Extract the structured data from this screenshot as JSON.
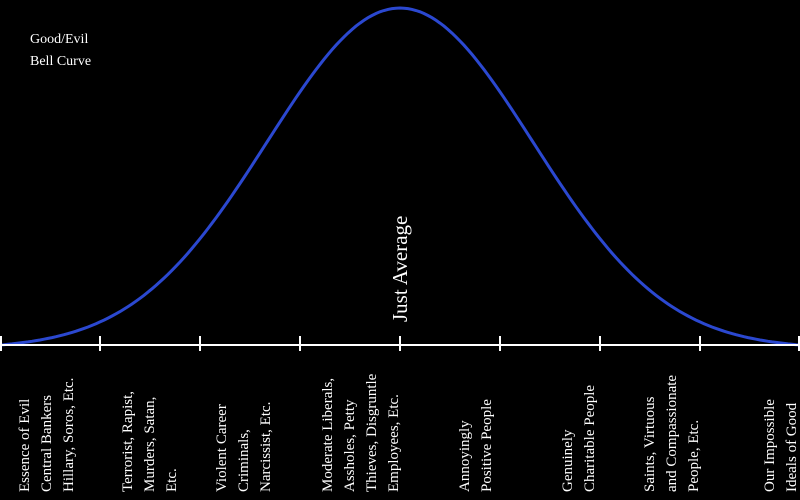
{
  "title": [
    "Good/Evil",
    "Bell Curve"
  ],
  "center_label": "Just Average",
  "labels": [
    [
      "Essence of Evil",
      "Central Bankers",
      "Hillary, Soros, Etc."
    ],
    [
      "Terrorist, Rapist,",
      "Murders, Satan,",
      "Etc."
    ],
    [
      "Violent Career",
      "Criminals,",
      "Narcissist, Etc."
    ],
    [
      "Moderate Liberals,",
      "Assholes, Petty",
      "Thieves, Disgruntle",
      "Employees, Etc."
    ],
    [
      "Annoyingly",
      "Positive People"
    ],
    [
      "Genuinely",
      "Charitable People"
    ],
    [
      "Saints, Virtuous",
      "and Compassionate",
      "People, Etc."
    ],
    [
      "Our Impossible",
      "Ideals of Good"
    ]
  ]
}
